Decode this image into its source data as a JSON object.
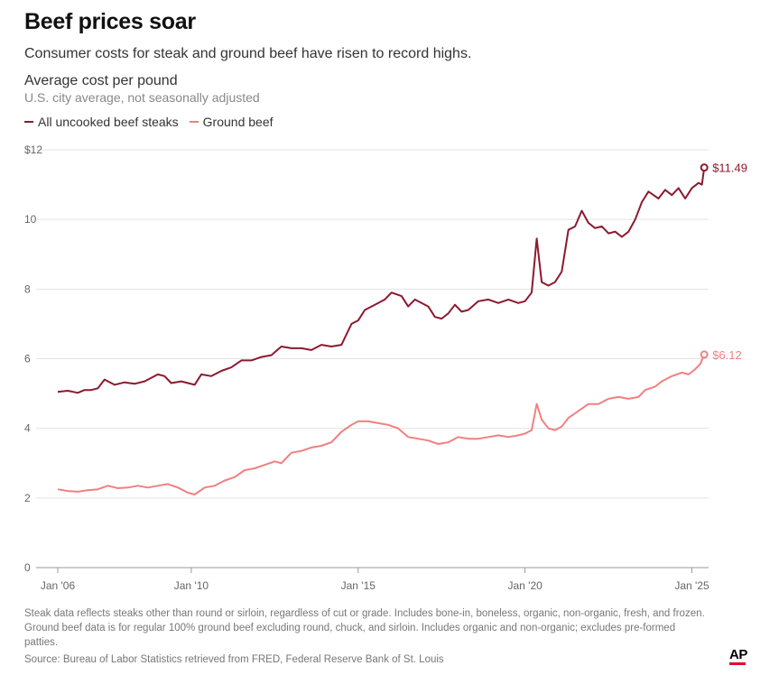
{
  "header": {
    "title": "Beef prices soar",
    "subtitle": "Consumer costs for steak and ground beef have risen to record highs.",
    "chart_heading": "Average cost per pound",
    "chart_subheading": "U.S. city average, not seasonally adjusted"
  },
  "legend": [
    {
      "label": "All uncooked beef steaks",
      "color": "#8b1a2f"
    },
    {
      "label": "Ground beef",
      "color": "#f08080"
    }
  ],
  "footer": {
    "note": "Steak data reflects steaks other than round or sirloin, regardless of cut or grade. Includes bone-in, boneless, organic, non-organic, fresh, and frozen. Ground beef data is for regular 100% ground beef excluding round, chuck, and sirloin. Includes organic and non-organic; excludes pre-formed patties.",
    "source": "Source: Bureau of Labor Statistics retrieved from FRED, Federal Reserve Bank of St. Louis",
    "logo": "AP"
  },
  "chart_data": {
    "type": "line",
    "ylim": [
      0,
      12
    ],
    "xlim": [
      2006.0,
      2025.5
    ],
    "yticks": [
      {
        "value": 0,
        "label": "0"
      },
      {
        "value": 2,
        "label": "2"
      },
      {
        "value": 4,
        "label": "4"
      },
      {
        "value": 6,
        "label": "6"
      },
      {
        "value": 8,
        "label": "8"
      },
      {
        "value": 10,
        "label": "10"
      },
      {
        "value": 12,
        "label": "$12"
      }
    ],
    "xticks": [
      {
        "value": 2006.0,
        "label": "Jan '06"
      },
      {
        "value": 2010.0,
        "label": "Jan '10"
      },
      {
        "value": 2015.0,
        "label": "Jan '15"
      },
      {
        "value": 2020.0,
        "label": "Jan '20"
      },
      {
        "value": 2025.0,
        "label": "Jan '25"
      }
    ],
    "grid": true,
    "series": [
      {
        "name": "All uncooked beef steaks",
        "color": "#8b1a2f",
        "end_label": "$11.49",
        "points": [
          [
            2006.0,
            5.05
          ],
          [
            2006.3,
            5.08
          ],
          [
            2006.6,
            5.02
          ],
          [
            2006.8,
            5.1
          ],
          [
            2007.0,
            5.1
          ],
          [
            2007.2,
            5.15
          ],
          [
            2007.4,
            5.4
          ],
          [
            2007.7,
            5.25
          ],
          [
            2008.0,
            5.32
          ],
          [
            2008.3,
            5.28
          ],
          [
            2008.6,
            5.35
          ],
          [
            2008.8,
            5.45
          ],
          [
            2009.0,
            5.55
          ],
          [
            2009.2,
            5.5
          ],
          [
            2009.4,
            5.3
          ],
          [
            2009.7,
            5.35
          ],
          [
            2009.9,
            5.3
          ],
          [
            2010.1,
            5.25
          ],
          [
            2010.3,
            5.55
          ],
          [
            2010.6,
            5.5
          ],
          [
            2010.9,
            5.65
          ],
          [
            2011.2,
            5.75
          ],
          [
            2011.5,
            5.95
          ],
          [
            2011.8,
            5.95
          ],
          [
            2012.1,
            6.05
          ],
          [
            2012.4,
            6.1
          ],
          [
            2012.7,
            6.35
          ],
          [
            2013.0,
            6.3
          ],
          [
            2013.3,
            6.3
          ],
          [
            2013.6,
            6.25
          ],
          [
            2013.9,
            6.4
          ],
          [
            2014.2,
            6.35
          ],
          [
            2014.5,
            6.4
          ],
          [
            2014.8,
            7.0
          ],
          [
            2015.0,
            7.1
          ],
          [
            2015.2,
            7.4
          ],
          [
            2015.5,
            7.55
          ],
          [
            2015.8,
            7.7
          ],
          [
            2016.0,
            7.9
          ],
          [
            2016.3,
            7.8
          ],
          [
            2016.5,
            7.5
          ],
          [
            2016.7,
            7.7
          ],
          [
            2016.9,
            7.6
          ],
          [
            2017.1,
            7.5
          ],
          [
            2017.3,
            7.2
          ],
          [
            2017.5,
            7.15
          ],
          [
            2017.7,
            7.3
          ],
          [
            2017.9,
            7.55
          ],
          [
            2018.1,
            7.35
          ],
          [
            2018.3,
            7.4
          ],
          [
            2018.6,
            7.65
          ],
          [
            2018.9,
            7.7
          ],
          [
            2019.2,
            7.6
          ],
          [
            2019.5,
            7.7
          ],
          [
            2019.8,
            7.6
          ],
          [
            2020.0,
            7.65
          ],
          [
            2020.2,
            7.9
          ],
          [
            2020.35,
            9.45
          ],
          [
            2020.5,
            8.2
          ],
          [
            2020.7,
            8.1
          ],
          [
            2020.9,
            8.2
          ],
          [
            2021.1,
            8.5
          ],
          [
            2021.3,
            9.7
          ],
          [
            2021.5,
            9.8
          ],
          [
            2021.7,
            10.25
          ],
          [
            2021.9,
            9.9
          ],
          [
            2022.1,
            9.75
          ],
          [
            2022.3,
            9.8
          ],
          [
            2022.5,
            9.6
          ],
          [
            2022.7,
            9.65
          ],
          [
            2022.9,
            9.5
          ],
          [
            2023.1,
            9.65
          ],
          [
            2023.3,
            10.0
          ],
          [
            2023.5,
            10.5
          ],
          [
            2023.7,
            10.8
          ],
          [
            2023.85,
            10.7
          ],
          [
            2024.0,
            10.6
          ],
          [
            2024.2,
            10.85
          ],
          [
            2024.4,
            10.7
          ],
          [
            2024.6,
            10.9
          ],
          [
            2024.8,
            10.6
          ],
          [
            2025.0,
            10.9
          ],
          [
            2025.2,
            11.05
          ],
          [
            2025.3,
            11.0
          ],
          [
            2025.37,
            11.49
          ]
        ]
      },
      {
        "name": "Ground beef",
        "color": "#f08080",
        "end_label": "$6.12",
        "points": [
          [
            2006.0,
            2.25
          ],
          [
            2006.3,
            2.2
          ],
          [
            2006.6,
            2.18
          ],
          [
            2006.9,
            2.22
          ],
          [
            2007.2,
            2.25
          ],
          [
            2007.5,
            2.35
          ],
          [
            2007.8,
            2.28
          ],
          [
            2008.1,
            2.3
          ],
          [
            2008.4,
            2.35
          ],
          [
            2008.7,
            2.3
          ],
          [
            2009.0,
            2.35
          ],
          [
            2009.3,
            2.4
          ],
          [
            2009.6,
            2.3
          ],
          [
            2009.9,
            2.15
          ],
          [
            2010.1,
            2.1
          ],
          [
            2010.4,
            2.3
          ],
          [
            2010.7,
            2.35
          ],
          [
            2011.0,
            2.5
          ],
          [
            2011.3,
            2.6
          ],
          [
            2011.6,
            2.8
          ],
          [
            2011.9,
            2.85
          ],
          [
            2012.2,
            2.95
          ],
          [
            2012.5,
            3.05
          ],
          [
            2012.7,
            3.0
          ],
          [
            2013.0,
            3.3
          ],
          [
            2013.3,
            3.35
          ],
          [
            2013.6,
            3.45
          ],
          [
            2013.9,
            3.5
          ],
          [
            2014.2,
            3.6
          ],
          [
            2014.5,
            3.9
          ],
          [
            2014.8,
            4.1
          ],
          [
            2015.0,
            4.2
          ],
          [
            2015.3,
            4.2
          ],
          [
            2015.6,
            4.15
          ],
          [
            2015.9,
            4.1
          ],
          [
            2016.2,
            4.0
          ],
          [
            2016.5,
            3.75
          ],
          [
            2016.8,
            3.7
          ],
          [
            2017.1,
            3.65
          ],
          [
            2017.4,
            3.55
          ],
          [
            2017.7,
            3.6
          ],
          [
            2018.0,
            3.75
          ],
          [
            2018.3,
            3.7
          ],
          [
            2018.6,
            3.7
          ],
          [
            2018.9,
            3.75
          ],
          [
            2019.2,
            3.8
          ],
          [
            2019.5,
            3.75
          ],
          [
            2019.8,
            3.8
          ],
          [
            2020.0,
            3.85
          ],
          [
            2020.2,
            3.95
          ],
          [
            2020.35,
            4.7
          ],
          [
            2020.5,
            4.25
          ],
          [
            2020.7,
            4.0
          ],
          [
            2020.9,
            3.95
          ],
          [
            2021.1,
            4.05
          ],
          [
            2021.3,
            4.3
          ],
          [
            2021.6,
            4.5
          ],
          [
            2021.9,
            4.7
          ],
          [
            2022.2,
            4.7
          ],
          [
            2022.5,
            4.85
          ],
          [
            2022.8,
            4.9
          ],
          [
            2023.1,
            4.85
          ],
          [
            2023.4,
            4.9
          ],
          [
            2023.6,
            5.1
          ],
          [
            2023.9,
            5.2
          ],
          [
            2024.1,
            5.35
          ],
          [
            2024.4,
            5.5
          ],
          [
            2024.7,
            5.6
          ],
          [
            2024.9,
            5.55
          ],
          [
            2025.1,
            5.7
          ],
          [
            2025.25,
            5.85
          ],
          [
            2025.37,
            6.12
          ]
        ]
      }
    ]
  }
}
